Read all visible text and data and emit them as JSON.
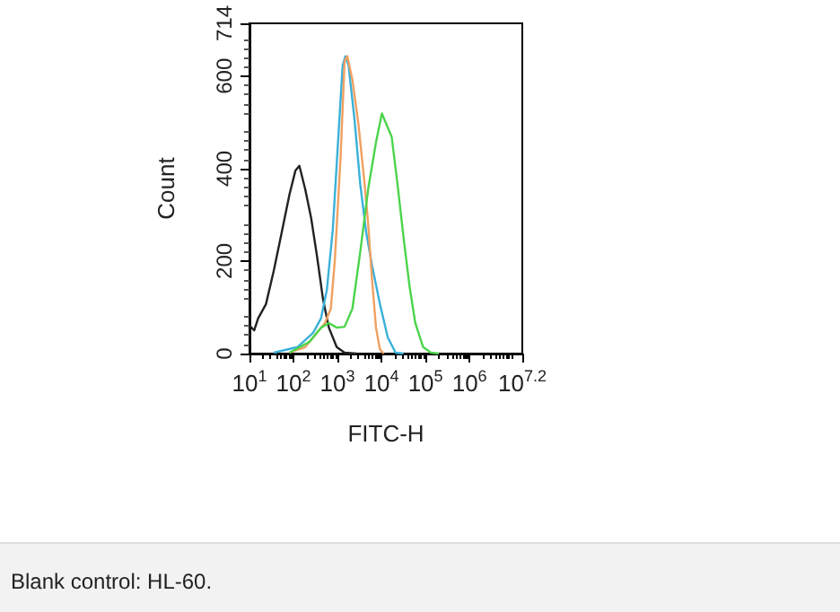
{
  "chart_data": {
    "type": "line",
    "xlabel": "FITC-H",
    "ylabel": "Count",
    "log": "x",
    "marker": "none",
    "line_style": "solid",
    "grid": false,
    "xlim": [
      10,
      15848932
    ],
    "xticks": [
      {
        "value": 10,
        "label": "10$^{1}$"
      },
      {
        "value": 100,
        "label": "10$^{2}$"
      },
      {
        "value": 1000,
        "label": "10$^{3}$"
      },
      {
        "value": 10000,
        "label": "10$^{4}$"
      },
      {
        "value": 100000,
        "label": "10$^{5}$"
      },
      {
        "value": 1000000,
        "label": "10$^{6}$"
      },
      {
        "value": 15848932,
        "label": "10$^{7.2}$"
      }
    ],
    "ylim": [
      0,
      714
    ],
    "yticks": [
      0,
      200,
      400,
      600,
      714
    ],
    "annotations": [
      "Blank control: HL-60."
    ],
    "series": [
      {
        "color": "#222222",
        "x": [
          10,
          12.8,
          15.7,
          23.7,
          35.8,
          54,
          81,
          111,
          136,
          185,
          252,
          343,
          468,
          637,
          960,
          1450,
          2680
        ],
        "values": [
          61,
          50,
          76,
          107,
          180,
          262,
          344,
          396,
          406,
          355,
          293,
          210,
          118,
          56,
          14,
          2,
          0
        ]
      },
      {
        "color": "#3ab0d8",
        "x": [
          35.8,
          123,
          279,
          422,
          574,
          782,
          1060,
          1310,
          1510,
          1780,
          2420,
          3300,
          4490,
          6110,
          9210,
          13900,
          20900,
          31600
        ],
        "values": [
          2,
          14,
          45,
          76,
          138,
          268,
          478,
          623,
          643,
          623,
          509,
          365,
          262,
          190,
          107,
          35,
          2,
          0
        ]
      },
      {
        "color": "#f0a060",
        "x": [
          81,
          185,
          343,
          518,
          705,
          867,
          1180,
          1450,
          1670,
          2180,
          2970,
          4050,
          4970,
          6110,
          7500,
          9210,
          11300
        ],
        "values": [
          2,
          14,
          45,
          66,
          97,
          200,
          427,
          633,
          643,
          592,
          499,
          375,
          282,
          159,
          56,
          9,
          0
        ]
      },
      {
        "color": "#4cd44c",
        "x": [
          81,
          228,
          422,
          637,
          960,
          1450,
          2180,
          3300,
          4970,
          7500,
          10200,
          12500,
          17100,
          23200,
          31600,
          43000,
          58600,
          88400,
          133000,
          201000
        ],
        "values": [
          2,
          25,
          56,
          66,
          56,
          58,
          97,
          221,
          355,
          457,
          519,
          499,
          468,
          365,
          252,
          148,
          66,
          14,
          2,
          0
        ]
      }
    ]
  }
}
